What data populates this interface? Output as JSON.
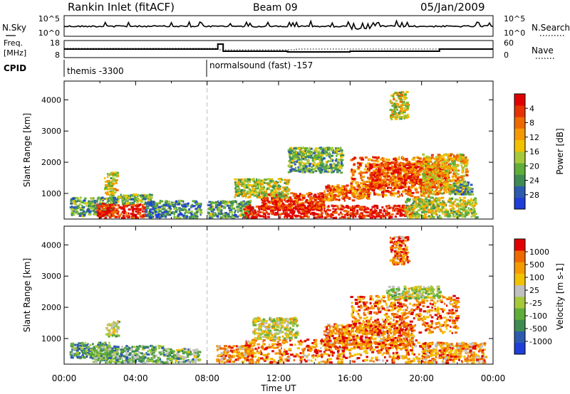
{
  "header": {
    "station": "Rankin Inlet (fitACF)",
    "beam": "Beam 09",
    "date": "05/Jan/2009"
  },
  "nsky_panel": {
    "left_label": "N.Sky",
    "right_label": "N.Search",
    "ticks": [
      "10^5",
      "10^0"
    ]
  },
  "freq_panel": {
    "left_label_1": "Freq.",
    "left_label_2": "[MHz]",
    "left_ticks": [
      "18",
      "8"
    ],
    "right_label": "Nave",
    "right_ticks": [
      "60",
      "0"
    ]
  },
  "cpid_panel": {
    "label": "CPID",
    "modes": [
      "themis -3300",
      "normalsound (fast) -157"
    ]
  },
  "xaxis": {
    "label": "Time UT",
    "ticks": [
      "00:00",
      "04:00",
      "08:00",
      "12:00",
      "16:00",
      "20:00",
      "00:00"
    ]
  },
  "chart_data": [
    {
      "type": "heatmap",
      "panel": "power",
      "ylabel": "Slant Range [km]",
      "yticks": [
        "1000",
        "2000",
        "3000",
        "4000"
      ],
      "ylim": [
        180,
        4600
      ],
      "xlim_hours": [
        0,
        24
      ],
      "colorbar": {
        "label": "Power [dB]",
        "ticks": [
          "4",
          "8",
          "12",
          "16",
          "20",
          "24",
          "28"
        ],
        "colors": [
          "#1f3fd8",
          "#2c5bb0",
          "#3f8c52",
          "#5fae3a",
          "#a6c93a",
          "#f2c200",
          "#f59a00",
          "#ee6a00",
          "#e63200",
          "#e00000"
        ]
      },
      "regions": [
        {
          "x": [
            0.3,
            2.8
          ],
          "y": [
            300,
            900
          ],
          "level": 0.3
        },
        {
          "x": [
            1.8,
            4.5
          ],
          "y": [
            250,
            700
          ],
          "level": 0.9
        },
        {
          "x": [
            2.3,
            4.8
          ],
          "y": [
            700,
            1000
          ],
          "level": 0.35
        },
        {
          "x": [
            2.2,
            2.9
          ],
          "y": [
            1000,
            1700
          ],
          "level": 0.5
        },
        {
          "x": [
            4.5,
            7.6
          ],
          "y": [
            250,
            800
          ],
          "level": 0.25
        },
        {
          "x": [
            8.0,
            10.5
          ],
          "y": [
            250,
            800
          ],
          "level": 0.3
        },
        {
          "x": [
            10.0,
            19.5
          ],
          "y": [
            250,
            650
          ],
          "level": 0.95
        },
        {
          "x": [
            11.0,
            14.5
          ],
          "y": [
            550,
            1050
          ],
          "level": 0.85
        },
        {
          "x": [
            9.5,
            12.5
          ],
          "y": [
            900,
            1500
          ],
          "level": 0.45
        },
        {
          "x": [
            14.5,
            17.0
          ],
          "y": [
            800,
            1300
          ],
          "level": 0.75
        },
        {
          "x": [
            16.0,
            20.5
          ],
          "y": [
            900,
            2200
          ],
          "level": 0.75
        },
        {
          "x": [
            17.0,
            21.5
          ],
          "y": [
            1200,
            2000
          ],
          "level": 0.85
        },
        {
          "x": [
            19.0,
            23.0
          ],
          "y": [
            250,
            900
          ],
          "level": 0.45
        },
        {
          "x": [
            20.0,
            22.5
          ],
          "y": [
            1000,
            2300
          ],
          "level": 0.6
        },
        {
          "x": [
            21.5,
            22.8
          ],
          "y": [
            1000,
            1400
          ],
          "level": 0.3
        },
        {
          "x": [
            12.5,
            15.5
          ],
          "y": [
            1700,
            2500
          ],
          "level": 0.35
        },
        {
          "x": [
            18.2,
            19.2
          ],
          "y": [
            3400,
            4300
          ],
          "level": 0.5
        }
      ]
    },
    {
      "type": "heatmap",
      "panel": "velocity",
      "ylabel": "Slant Range [km]",
      "yticks": [
        "1000",
        "2000",
        "3000",
        "4000"
      ],
      "ylim": [
        180,
        4600
      ],
      "xlim_hours": [
        0,
        24
      ],
      "colorbar": {
        "label": "Velocity [m s-1]",
        "ticks": [
          "1000",
          "500",
          "100",
          "25",
          "-25",
          "-100",
          "-500",
          "-1000"
        ],
        "colors": [
          "#1f3fd8",
          "#2c5bb0",
          "#3f8c52",
          "#5fae3a",
          "#a6c93a",
          "#c0c0c0",
          "#f2c200",
          "#f59a00",
          "#ee6a00",
          "#e00000"
        ]
      },
      "regions": [
        {
          "x": [
            0.3,
            2.5
          ],
          "y": [
            400,
            900
          ],
          "level": 0.28
        },
        {
          "x": [
            1.5,
            5.5
          ],
          "y": [
            250,
            800
          ],
          "level": 0.35
        },
        {
          "x": [
            2.3,
            3.0
          ],
          "y": [
            1100,
            1600
          ],
          "level": 0.5
        },
        {
          "x": [
            5.5,
            7.5
          ],
          "y": [
            250,
            700
          ],
          "level": 0.4
        },
        {
          "x": [
            8.5,
            10.5
          ],
          "y": [
            250,
            800
          ],
          "level": 0.72
        },
        {
          "x": [
            10.0,
            20.0
          ],
          "y": [
            250,
            1000
          ],
          "level": 0.8
        },
        {
          "x": [
            10.5,
            13.0
          ],
          "y": [
            1000,
            1700
          ],
          "level": 0.55
        },
        {
          "x": [
            14.5,
            19.5
          ],
          "y": [
            700,
            1500
          ],
          "level": 0.8
        },
        {
          "x": [
            16.0,
            22.0
          ],
          "y": [
            1200,
            2400
          ],
          "level": 0.82
        },
        {
          "x": [
            18.0,
            21.0
          ],
          "y": [
            2300,
            2700
          ],
          "level": 0.5
        },
        {
          "x": [
            20.0,
            23.5
          ],
          "y": [
            250,
            900
          ],
          "level": 0.75
        },
        {
          "x": [
            18.2,
            19.2
          ],
          "y": [
            3400,
            4300
          ],
          "level": 0.8
        }
      ]
    }
  ]
}
